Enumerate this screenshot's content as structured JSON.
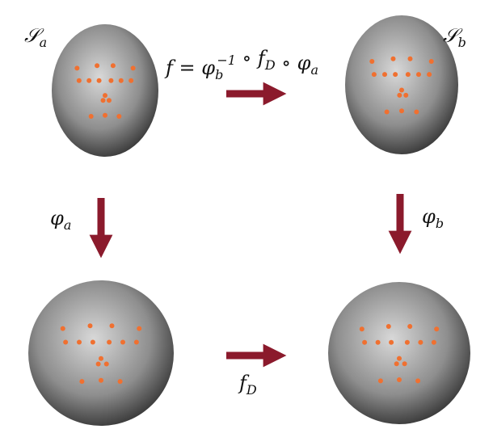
{
  "labels": {
    "source_surface": [
      {
        "text": "𝒮",
        "style": "normal"
      },
      {
        "text": "a",
        "style": "sub"
      }
    ],
    "target_surface": [
      {
        "text": "𝒮",
        "style": "normal"
      },
      {
        "text": "b",
        "style": "sub"
      }
    ],
    "composition": [
      {
        "text": "f = φ",
        "style": "normal"
      },
      {
        "text": "b",
        "style": "sub"
      },
      {
        "text": "−1",
        "style": "sup"
      },
      {
        "text": " ∘ f",
        "style": "normal"
      },
      {
        "text": "D",
        "style": "sub"
      },
      {
        "text": " ∘ φ",
        "style": "normal"
      },
      {
        "text": "a",
        "style": "sub"
      }
    ],
    "map_a": [
      {
        "text": "φ",
        "style": "normal"
      },
      {
        "text": "a",
        "style": "sub"
      }
    ],
    "map_b": [
      {
        "text": "φ",
        "style": "normal"
      },
      {
        "text": "b",
        "style": "sub"
      }
    ],
    "disk_map": [
      {
        "text": "f",
        "style": "normal"
      },
      {
        "text": "D",
        "style": "sub"
      }
    ]
  }
}
